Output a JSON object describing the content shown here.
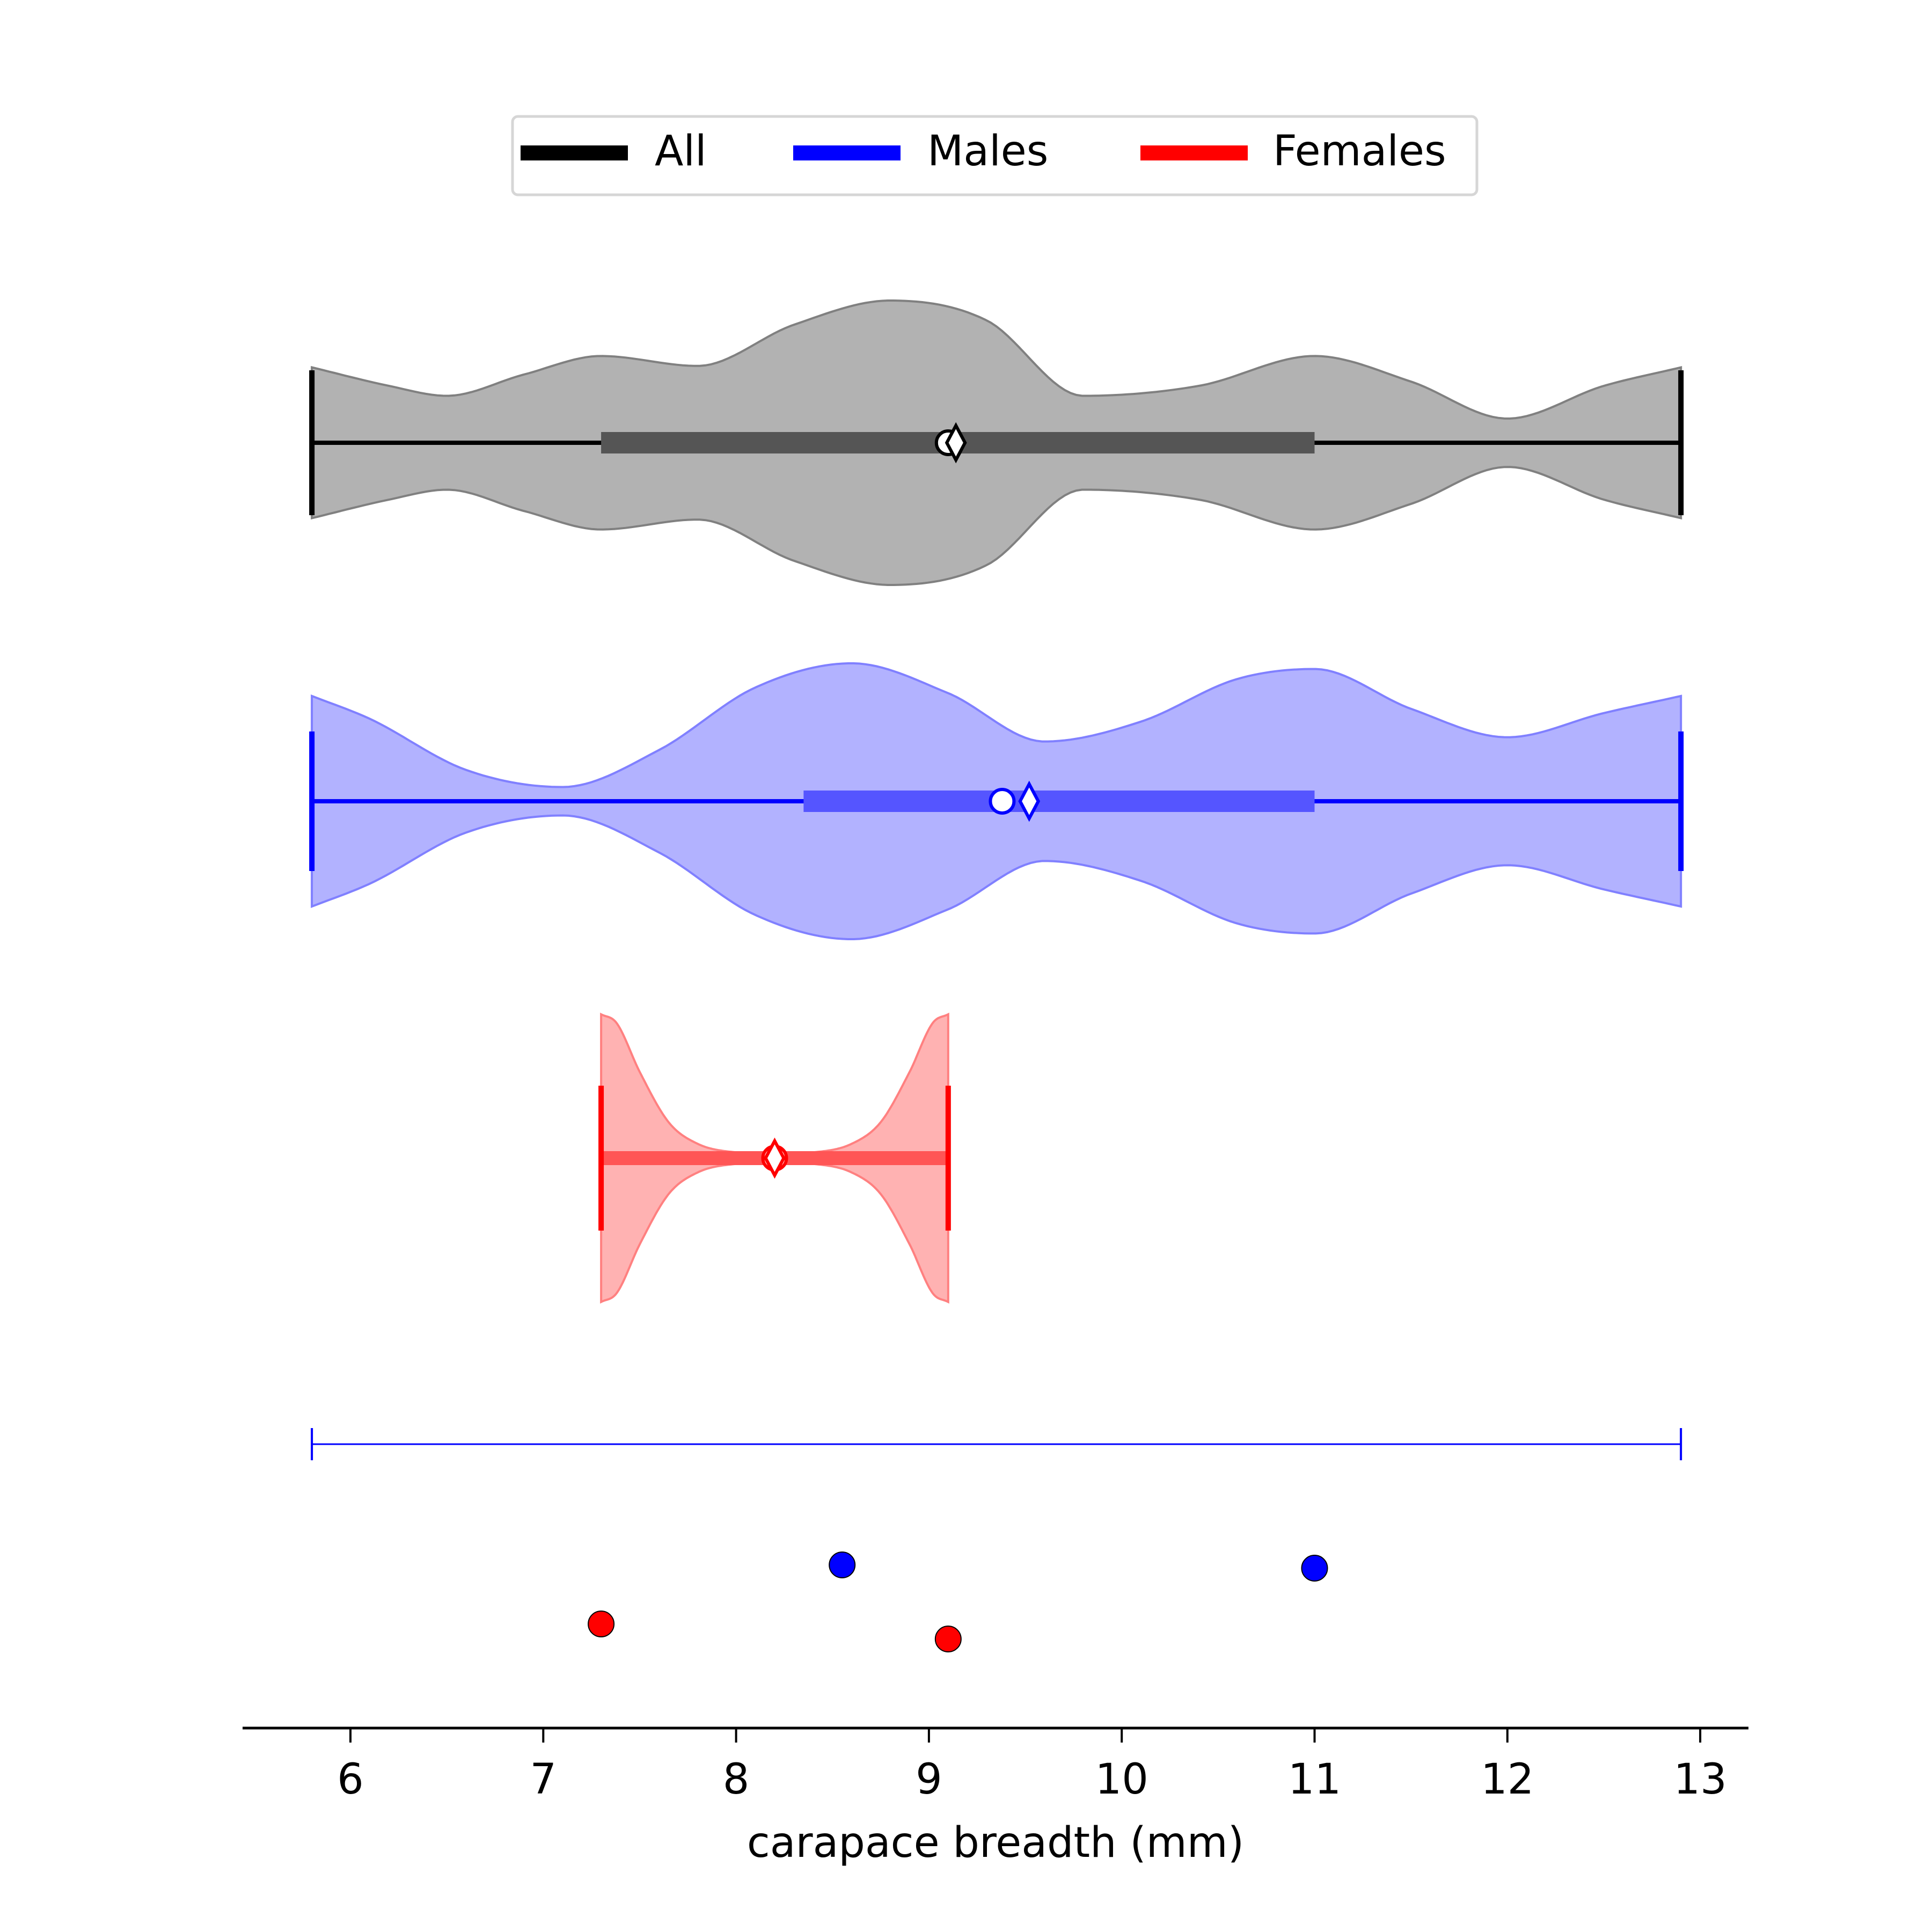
{
  "chart_data": {
    "type": "violin",
    "title": "",
    "xlabel": "carapace breadth (mm)",
    "ylabel": "",
    "xlim": [
      5.45,
      13.25
    ],
    "x_ticks": [
      6,
      7,
      8,
      9,
      10,
      11,
      12,
      13
    ],
    "grid": false,
    "legend": {
      "placement": "top-center",
      "entries": [
        {
          "label": "All",
          "color": "#000000"
        },
        {
          "label": "Males",
          "color": "#0000ff"
        },
        {
          "label": "Females",
          "color": "#ff0000"
        }
      ]
    },
    "series": [
      {
        "name": "All",
        "line_color": "#000000",
        "fill_color": "#b2b2b2",
        "outline_color": "#808080",
        "iqr_color": "#555555",
        "min": 5.8,
        "max": 12.9,
        "q1": 7.3,
        "q3": 11.0,
        "median": 9.1,
        "mean": 9.14,
        "density_x": [
          5.8,
          6.2,
          6.5,
          6.9,
          7.3,
          7.8,
          8.3,
          8.8,
          9.3,
          9.8,
          10.4,
          11.0,
          11.5,
          12.0,
          12.5,
          12.9
        ],
        "density_y": [
          0.53,
          0.4,
          0.33,
          0.48,
          0.61,
          0.54,
          0.83,
          1.0,
          0.86,
          0.33,
          0.4,
          0.61,
          0.43,
          0.17,
          0.4,
          0.53
        ]
      },
      {
        "name": "Males",
        "line_color": "#0000ff",
        "fill_color": "#b2b2ff",
        "outline_color": "#8080ff",
        "iqr_color": "#5555ff",
        "min": 5.8,
        "max": 12.9,
        "q1": 8.35,
        "q3": 11.0,
        "median": 9.38,
        "mean": 9.52,
        "density_x": [
          5.8,
          6.1,
          6.6,
          7.1,
          7.6,
          8.1,
          8.6,
          9.1,
          9.6,
          10.1,
          10.6,
          11.0,
          11.5,
          12.0,
          12.5,
          12.9
        ],
        "density_y": [
          0.74,
          0.58,
          0.22,
          0.1,
          0.36,
          0.8,
          0.97,
          0.76,
          0.42,
          0.56,
          0.86,
          0.93,
          0.65,
          0.45,
          0.62,
          0.74
        ]
      },
      {
        "name": "Females",
        "line_color": "#ff0000",
        "fill_color": "#ffb2b2",
        "outline_color": "#ff8080",
        "iqr_color": "#ff5555",
        "min": 7.3,
        "max": 9.1,
        "q1": 7.3,
        "q3": 9.1,
        "median": 8.2,
        "mean": 8.2,
        "density_x": [
          7.3,
          7.38,
          7.5,
          7.65,
          7.8,
          8.0,
          8.2,
          8.4,
          8.6,
          8.75,
          8.9,
          9.02,
          9.1
        ],
        "density_y": [
          1.0,
          0.94,
          0.6,
          0.25,
          0.1,
          0.04,
          0.03,
          0.04,
          0.1,
          0.25,
          0.6,
          0.94,
          1.0
        ]
      }
    ],
    "range_bar": {
      "min": 5.8,
      "max": 12.9,
      "color": "#0000ff"
    },
    "points": [
      {
        "x": 8.55,
        "y": 0.93,
        "color": "#0000ff"
      },
      {
        "x": 11.0,
        "y": 0.9,
        "color": "#0000ff"
      },
      {
        "x": 7.3,
        "y": 0.38,
        "color": "#ff0000"
      },
      {
        "x": 9.1,
        "y": 0.24,
        "color": "#ff0000"
      }
    ]
  }
}
